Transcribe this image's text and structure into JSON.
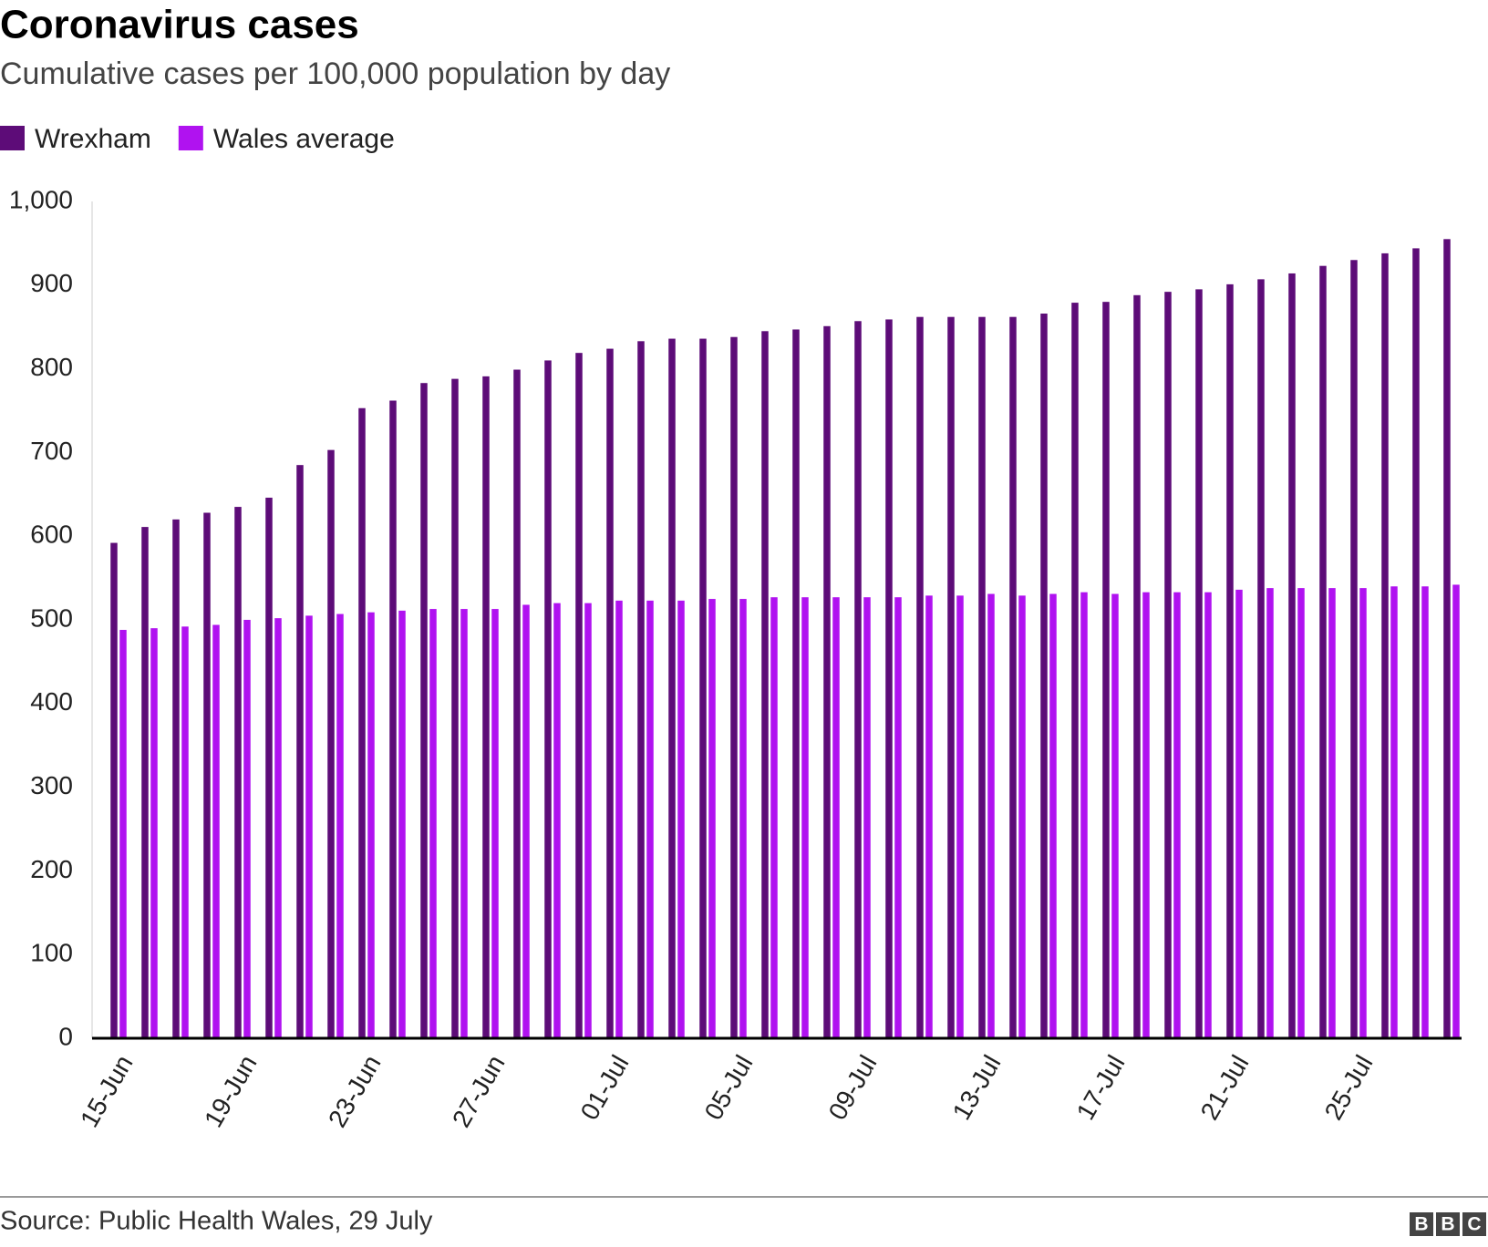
{
  "chart_data": {
    "type": "bar",
    "title": "Coronavirus cases",
    "subtitle": "Cumulative cases per 100,000 population by day",
    "source": "Source: Public Health Wales, 29 July",
    "logo": [
      "B",
      "B",
      "C"
    ],
    "categories": [
      "15-Jun",
      null,
      null,
      null,
      "19-Jun",
      null,
      null,
      null,
      "23-Jun",
      null,
      null,
      null,
      "27-Jun",
      null,
      null,
      null,
      "01-Jul",
      null,
      null,
      null,
      "05-Jul",
      null,
      null,
      null,
      "09-Jul",
      null,
      null,
      null,
      "13-Jul",
      null,
      null,
      null,
      "17-Jul",
      null,
      null,
      null,
      "21-Jul",
      null,
      null,
      null,
      "25-Jul",
      null,
      null,
      null
    ],
    "series": [
      {
        "name": "Wrexham",
        "color": "#5d0c78",
        "values": [
          592,
          611,
          620,
          628,
          635,
          646,
          685,
          703,
          753,
          762,
          783,
          788,
          791,
          799,
          810,
          819,
          824,
          833,
          836,
          836,
          838,
          845,
          847,
          851,
          857,
          859,
          862,
          862,
          862,
          862,
          866,
          879,
          880,
          888,
          892,
          895,
          901,
          907,
          914,
          923,
          930,
          938,
          944,
          955
        ]
      },
      {
        "name": "Wales average",
        "color": "#b012f0",
        "values": [
          488,
          490,
          492,
          494,
          500,
          502,
          505,
          507,
          509,
          511,
          513,
          513,
          513,
          518,
          520,
          520,
          523,
          523,
          523,
          525,
          525,
          527,
          527,
          527,
          527,
          527,
          529,
          529,
          531,
          529,
          531,
          533,
          531,
          533,
          533,
          533,
          536,
          538,
          538,
          538,
          538,
          540,
          540,
          542
        ]
      }
    ],
    "ylim": [
      0,
      1000
    ],
    "yticks": [
      0,
      100,
      200,
      300,
      400,
      500,
      600,
      700,
      800,
      900,
      {
        "value": 1000,
        "label": "1,000"
      }
    ],
    "grid": false,
    "legend": "top-left"
  }
}
